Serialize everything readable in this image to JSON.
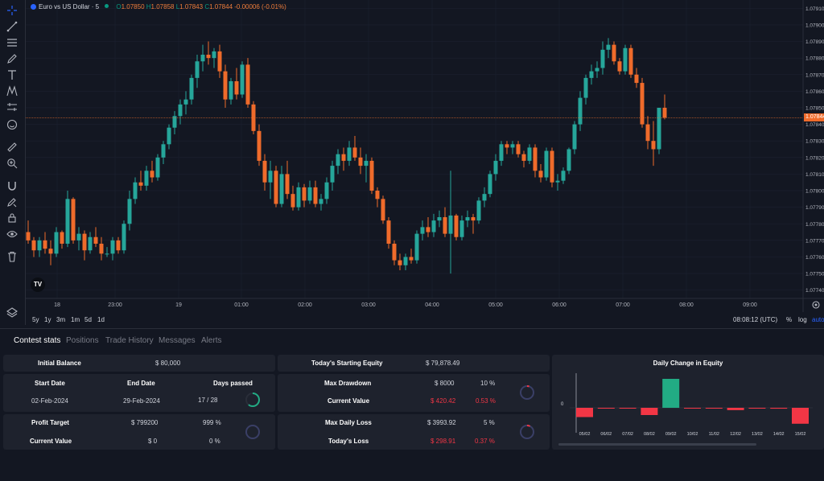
{
  "symbol": {
    "name": "Euro vs US Dollar · 5",
    "open_label": "O",
    "open": "1.07850",
    "high_label": "H",
    "high": "1.07858",
    "low_label": "L",
    "low": "1.07843",
    "close_label": "C",
    "close": "1.07844",
    "change": "-0.00006 (-0.01%)"
  },
  "price_axis": {
    "ticks": [
      "1.07910",
      "1.07900",
      "1.07890",
      "1.07880",
      "1.07870",
      "1.07860",
      "1.07850",
      "1.07840",
      "1.07830",
      "1.07820",
      "1.07810",
      "1.07800",
      "1.07790",
      "1.07780",
      "1.07770",
      "1.07760",
      "1.07750",
      "1.07740"
    ],
    "current_price": "1.07844"
  },
  "time_axis": {
    "ticks": [
      "18",
      "23:00",
      "19",
      "01:00",
      "02:00",
      "03:00",
      "04:00",
      "05:00",
      "06:00",
      "07:00",
      "08:00",
      "09:00"
    ]
  },
  "chart_data": {
    "type": "candlestick",
    "title": "Euro vs US Dollar · 5",
    "ylim": [
      1.07735,
      1.07915
    ],
    "up_color": "#26a69a",
    "down_color": "#ef6b2b",
    "candles": [
      [
        1.07775,
        1.07782,
        1.07768,
        1.0777
      ],
      [
        1.0777,
        1.07772,
        1.0776,
        1.07764
      ],
      [
        1.07764,
        1.07772,
        1.0776,
        1.0777
      ],
      [
        1.0777,
        1.07775,
        1.07762,
        1.07765
      ],
      [
        1.07765,
        1.0777,
        1.07755,
        1.07762
      ],
      [
        1.07762,
        1.07778,
        1.0776,
        1.07775
      ],
      [
        1.07775,
        1.07776,
        1.07765,
        1.07768
      ],
      [
        1.07768,
        1.078,
        1.07766,
        1.07795
      ],
      [
        1.07795,
        1.07796,
        1.07768,
        1.0777
      ],
      [
        1.0777,
        1.07778,
        1.07764,
        1.07774
      ],
      [
        1.07774,
        1.07776,
        1.07758,
        1.07764
      ],
      [
        1.07764,
        1.07775,
        1.07762,
        1.07772
      ],
      [
        1.07772,
        1.07778,
        1.07766,
        1.07768
      ],
      [
        1.07768,
        1.07772,
        1.07758,
        1.07762
      ],
      [
        1.07762,
        1.07766,
        1.0776,
        1.07762
      ],
      [
        1.07762,
        1.07772,
        1.07758,
        1.0777
      ],
      [
        1.0777,
        1.07772,
        1.07762,
        1.07764
      ],
      [
        1.07764,
        1.07782,
        1.07762,
        1.0778
      ],
      [
        1.0778,
        1.078,
        1.07776,
        1.07795
      ],
      [
        1.07795,
        1.07808,
        1.07792,
        1.07805
      ],
      [
        1.07805,
        1.07812,
        1.078,
        1.07803
      ],
      [
        1.07803,
        1.07815,
        1.078,
        1.07812
      ],
      [
        1.07812,
        1.07818,
        1.07805,
        1.07808
      ],
      [
        1.07808,
        1.07822,
        1.07806,
        1.0782
      ],
      [
        1.0782,
        1.0783,
        1.07816,
        1.07828
      ],
      [
        1.07828,
        1.0784,
        1.07825,
        1.07838
      ],
      [
        1.07838,
        1.07848,
        1.07834,
        1.07845
      ],
      [
        1.07845,
        1.07855,
        1.0784,
        1.07852
      ],
      [
        1.07852,
        1.0786,
        1.07846,
        1.07855
      ],
      [
        1.07855,
        1.0787,
        1.07852,
        1.07868
      ],
      [
        1.07868,
        1.07882,
        1.07862,
        1.07878
      ],
      [
        1.07878,
        1.07888,
        1.07872,
        1.07882
      ],
      [
        1.07882,
        1.0789,
        1.07876,
        1.0788
      ],
      [
        1.0788,
        1.07886,
        1.07874,
        1.07884
      ],
      [
        1.07884,
        1.07888,
        1.07868,
        1.07872
      ],
      [
        1.07872,
        1.07876,
        1.0785,
        1.07855
      ],
      [
        1.07855,
        1.07868,
        1.07852,
        1.07866
      ],
      [
        1.07866,
        1.07874,
        1.07855,
        1.07858
      ],
      [
        1.07858,
        1.07878,
        1.07856,
        1.07876
      ],
      [
        1.07876,
        1.0788,
        1.0785,
        1.07852
      ],
      [
        1.07852,
        1.07854,
        1.07834,
        1.07836
      ],
      [
        1.07836,
        1.0784,
        1.07815,
        1.07818
      ],
      [
        1.07818,
        1.07822,
        1.078,
        1.07805
      ],
      [
        1.07805,
        1.07818,
        1.07795,
        1.07812
      ],
      [
        1.07812,
        1.07815,
        1.0779,
        1.07792
      ],
      [
        1.07792,
        1.07815,
        1.0779,
        1.0781
      ],
      [
        1.0781,
        1.07818,
        1.07795,
        1.07798
      ],
      [
        1.07798,
        1.07803,
        1.07788,
        1.0779
      ],
      [
        1.0779,
        1.07805,
        1.07788,
        1.07802
      ],
      [
        1.07802,
        1.07804,
        1.0779,
        1.07794
      ],
      [
        1.07794,
        1.07806,
        1.07792,
        1.07802
      ],
      [
        1.07802,
        1.07806,
        1.0779,
        1.07792
      ],
      [
        1.07792,
        1.07798,
        1.07788,
        1.07795
      ],
      [
        1.07795,
        1.07808,
        1.07792,
        1.07805
      ],
      [
        1.07805,
        1.07818,
        1.078,
        1.07815
      ],
      [
        1.07815,
        1.07825,
        1.0781,
        1.07822
      ],
      [
        1.07822,
        1.07826,
        1.07812,
        1.07818
      ],
      [
        1.07818,
        1.0783,
        1.07815,
        1.07826
      ],
      [
        1.07826,
        1.07833,
        1.07818,
        1.0782
      ],
      [
        1.0782,
        1.07826,
        1.0781,
        1.07815
      ],
      [
        1.07815,
        1.07822,
        1.07805,
        1.07818
      ],
      [
        1.07818,
        1.0782,
        1.07798,
        1.078
      ],
      [
        1.078,
        1.07802,
        1.0779,
        1.07795
      ],
      [
        1.07795,
        1.07797,
        1.0778,
        1.07782
      ],
      [
        1.07782,
        1.07784,
        1.07765,
        1.07768
      ],
      [
        1.07768,
        1.0777,
        1.07755,
        1.07758
      ],
      [
        1.07758,
        1.07762,
        1.07752,
        1.07755
      ],
      [
        1.07755,
        1.07762,
        1.07752,
        1.0776
      ],
      [
        1.0776,
        1.07765,
        1.07756,
        1.07758
      ],
      [
        1.07758,
        1.07776,
        1.07756,
        1.07774
      ],
      [
        1.07774,
        1.07782,
        1.0777,
        1.07778
      ],
      [
        1.07778,
        1.07784,
        1.07772,
        1.07775
      ],
      [
        1.07775,
        1.07786,
        1.07772,
        1.07782
      ],
      [
        1.07782,
        1.07788,
        1.07778,
        1.07784
      ],
      [
        1.07784,
        1.0779,
        1.07772,
        1.07774
      ],
      [
        1.07774,
        1.07812,
        1.0775,
        1.07785
      ],
      [
        1.07785,
        1.07786,
        1.0777,
        1.07772
      ],
      [
        1.07772,
        1.07785,
        1.0777,
        1.07782
      ],
      [
        1.07782,
        1.07788,
        1.07778,
        1.07784
      ],
      [
        1.07784,
        1.07786,
        1.07774,
        1.07782
      ],
      [
        1.07782,
        1.07796,
        1.0778,
        1.07794
      ],
      [
        1.07794,
        1.07802,
        1.0779,
        1.07798
      ],
      [
        1.07798,
        1.07812,
        1.07796,
        1.0781
      ],
      [
        1.0781,
        1.07822,
        1.07806,
        1.07818
      ],
      [
        1.07818,
        1.0783,
        1.07815,
        1.07828
      ],
      [
        1.07828,
        1.0783,
        1.07822,
        1.07826
      ],
      [
        1.07826,
        1.0783,
        1.07822,
        1.07828
      ],
      [
        1.07828,
        1.0783,
        1.0782,
        1.07822
      ],
      [
        1.07822,
        1.07824,
        1.07814,
        1.07818
      ],
      [
        1.07818,
        1.07828,
        1.07816,
        1.07826
      ],
      [
        1.07826,
        1.07828,
        1.07808,
        1.07812
      ],
      [
        1.07812,
        1.07816,
        1.07805,
        1.07808
      ],
      [
        1.07808,
        1.07826,
        1.07806,
        1.07824
      ],
      [
        1.07824,
        1.07826,
        1.07802,
        1.07805
      ],
      [
        1.07805,
        1.0781,
        1.078,
        1.07806
      ],
      [
        1.07806,
        1.07814,
        1.07804,
        1.07812
      ],
      [
        1.07812,
        1.07826,
        1.0781,
        1.07825
      ],
      [
        1.07825,
        1.07842,
        1.07822,
        1.0784
      ],
      [
        1.0784,
        1.0786,
        1.07836,
        1.07856
      ],
      [
        1.07856,
        1.0787,
        1.07852,
        1.07868
      ],
      [
        1.07868,
        1.07876,
        1.07864,
        1.07872
      ],
      [
        1.07872,
        1.07878,
        1.07868,
        1.07874
      ],
      [
        1.07874,
        1.0789,
        1.0787,
        1.07885
      ],
      [
        1.07885,
        1.07892,
        1.0788,
        1.07888
      ],
      [
        1.07888,
        1.0789,
        1.07876,
        1.07878
      ],
      [
        1.07878,
        1.0788,
        1.0787,
        1.07872
      ],
      [
        1.07872,
        1.07888,
        1.0787,
        1.07886
      ],
      [
        1.07886,
        1.07888,
        1.07868,
        1.0787
      ],
      [
        1.0787,
        1.07874,
        1.07862,
        1.07865
      ],
      [
        1.07865,
        1.07868,
        1.07838,
        1.0784
      ],
      [
        1.0784,
        1.07845,
        1.07825,
        1.0783
      ],
      [
        1.0783,
        1.07842,
        1.07815,
        1.07825
      ],
      [
        1.07825,
        1.0785,
        1.07822,
        1.0785
      ],
      [
        1.0785,
        1.07858,
        1.07843,
        1.07844
      ]
    ]
  },
  "range_buttons": [
    "5y",
    "1y",
    "3m",
    "1m",
    "5d",
    "1d"
  ],
  "clock": "08:08:12 (UTC)",
  "scale_options": {
    "percent": "%",
    "log": "log",
    "auto": "auto"
  },
  "tabs": [
    "Contest stats",
    "Positions",
    "Trade History",
    "Messages",
    "Alerts"
  ],
  "stats": {
    "initial_balance_label": "Initial Balance",
    "initial_balance": "$ 80,000",
    "start_date_label": "Start Date",
    "end_date_label": "End Date",
    "days_passed_label": "Days passed",
    "start_date": "02-Feb-2024",
    "end_date": "29-Feb-2024",
    "days_passed": "17 / 28",
    "days_progress": 0.607,
    "profit_target_label": "Profit Target",
    "profit_target": "$ 799200",
    "profit_target_pct": "999 %",
    "current_value_label": "Current Value",
    "current_value": "$ 0",
    "current_value_pct": "0 %",
    "profit_progress": 0.0,
    "starting_equity_label": "Today's Starting Equity",
    "starting_equity": "$ 79,878.49",
    "max_drawdown_label": "Max Drawdown",
    "max_drawdown": "$ 8000",
    "max_drawdown_pct": "10 %",
    "dd_current_label": "Current Value",
    "dd_current": "$ 420.42",
    "dd_current_pct": "0.53 %",
    "dd_progress": 0.053,
    "max_daily_loss_label": "Max Daily Loss",
    "max_daily_loss": "$ 3993.92",
    "max_daily_loss_pct": "5 %",
    "todays_loss_label": "Today's Loss",
    "todays_loss": "$ 298.91",
    "todays_loss_pct": "0.37 %",
    "loss_progress": 0.074
  },
  "equity_chart": {
    "title": "Daily Change in Equity",
    "zero_label": "0",
    "colors": {
      "positive": "#22ab84",
      "negative": "#f23645"
    },
    "categories": [
      "05/02",
      "06/02",
      "07/02",
      "08/02",
      "09/02",
      "10/02",
      "11/02",
      "12/02",
      "13/02",
      "14/02",
      "15/02"
    ],
    "values": [
      -0.32,
      -0.02,
      -0.01,
      -0.25,
      1.0,
      -0.01,
      -0.01,
      -0.08,
      -0.02,
      -0.03,
      -0.55
    ]
  }
}
